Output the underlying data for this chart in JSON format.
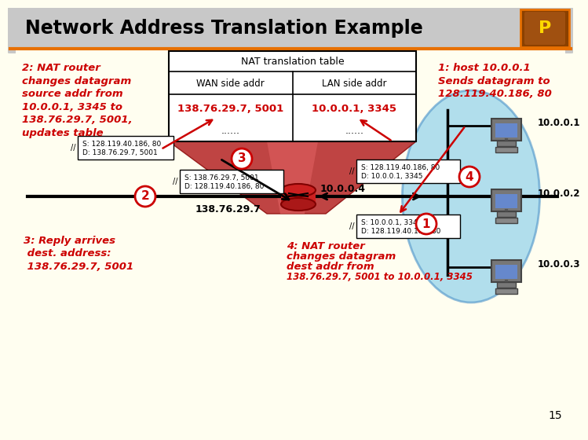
{
  "title": "Network Address Translation Example",
  "bg_color": "#FFFEF0",
  "border_color": "#E87000",
  "title_bar_color": "#C8C8C8",
  "table_title": "NAT translation table",
  "col1_header": "WAN side addr",
  "col2_header": "LAN side addr",
  "table_row1_c1": "138.76.29.7, 5001",
  "table_row1_c2": "10.0.0.1, 3345",
  "table_dots": "......",
  "label1_line1": "1: host 10.0.0.1",
  "label1_line2": "sends datagram to",
  "label1_line3": "128.119.40.186, 80",
  "label2_text": "2: NAT router\nchanges datagram\nsource addr from\n10.0.0.1, 3345 to\n138.76.29.7, 5001,\nupdates table",
  "label3_title": "3: Reply arrives\n dest. address:\n 138.76.29.7, 5001",
  "label4_line1": "4: NAT router",
  "label4_line2": "changes datagram",
  "label4_line3": "dest addr from",
  "label4_line4": "138.76.29.7, 5001 to 10.0.0.1, 3345",
  "router_label": "10.0.0.4",
  "wan_label": "138.76.29.7",
  "pkt1_s": "S: 138.76.29.7, 5001",
  "pkt1_d": "D: 128.119.40.186, 80",
  "pkt2_s": "S: 10.0.0.1, 3345",
  "pkt2_d": "D: 128.119.40.186, 80",
  "pkt3_s": "S: 128.119.40.186, 80",
  "pkt3_d": "D: 138.76.29.7, 5001",
  "pkt4_s": "S: 128.119.40.186, 80",
  "pkt4_d": "D: 10.0.0.1, 3345",
  "host1": "10.0.0.1",
  "host2": "10.0.0.2",
  "host3": "10.0.0.3",
  "red_color": "#CC0000",
  "slide_num": "15"
}
